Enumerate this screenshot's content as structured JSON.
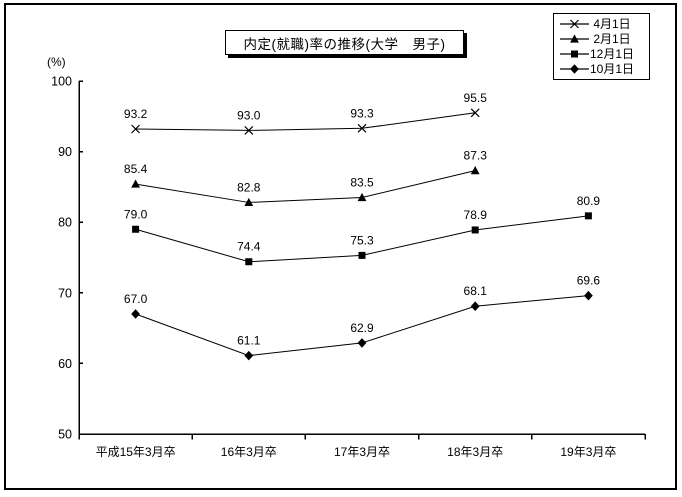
{
  "title": "内定(就職)率の推移(大学　男子)",
  "axis": {
    "unit_label": "(%)",
    "y_ticks": [
      100,
      90,
      80,
      70,
      60,
      50
    ],
    "x_labels": [
      "平成15年3月卒",
      "16年3月卒",
      "17年3月卒",
      "18年3月卒",
      "19年3月卒"
    ]
  },
  "legend": {
    "items": [
      {
        "label": " 4月1日",
        "marker": "x"
      },
      {
        "label": " 2月1日",
        "marker": "triangle"
      },
      {
        "label": "12月1日",
        "marker": "square"
      },
      {
        "label": "10月1日",
        "marker": "diamond"
      }
    ]
  },
  "chart_data": {
    "type": "line",
    "title": "内定(就職)率の推移(大学　男子)",
    "categories": [
      "平成15年3月卒",
      "16年3月卒",
      "17年3月卒",
      "18年3月卒",
      "19年3月卒"
    ],
    "series": [
      {
        "name": "4月1日",
        "marker": "x",
        "values": [
          93.2,
          93.0,
          93.3,
          95.5,
          null
        ]
      },
      {
        "name": "2月1日",
        "marker": "triangle",
        "values": [
          85.4,
          82.8,
          83.5,
          87.3,
          null
        ]
      },
      {
        "name": "12月1日",
        "marker": "square",
        "values": [
          79.0,
          74.4,
          75.3,
          78.9,
          80.9
        ]
      },
      {
        "name": "10月1日",
        "marker": "diamond",
        "values": [
          67.0,
          61.1,
          62.9,
          68.1,
          69.6
        ]
      }
    ],
    "ylabel": "(%)",
    "ylim": [
      50,
      100
    ],
    "y_tick_step": 10,
    "grid": false,
    "data_labels": true,
    "data_label_decimals": 1,
    "legend_position": "top-right",
    "line_color": "#000000",
    "background": "#ffffff"
  },
  "colors": {
    "foreground": "#000000",
    "background": "#ffffff",
    "border": "#000000"
  }
}
